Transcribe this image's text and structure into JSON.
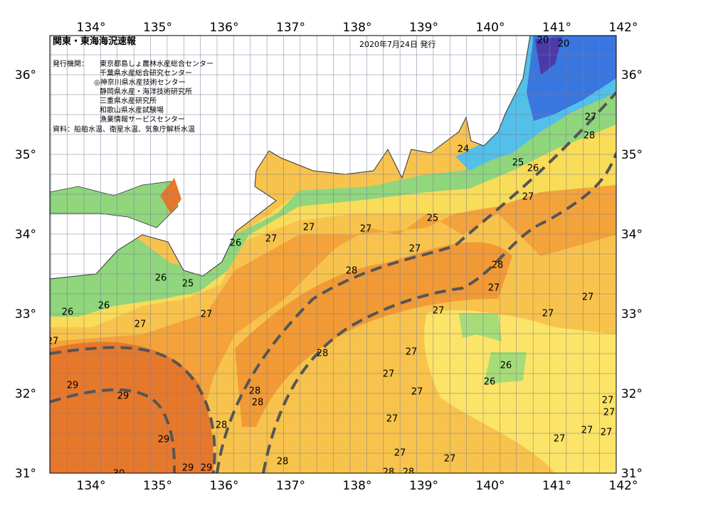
{
  "header": {
    "title": "関東・東海海況速報",
    "date": "2020年7月24日 発行",
    "issuer_label": "発行機関：",
    "issuers": [
      "東京都島しょ農林水産総合センター",
      "千葉県水産総合研究センター",
      "◎神奈川県水産技術センター",
      "静岡県水産・海洋技術研究所",
      "三重県水産研究所",
      "和歌山県水産試験場",
      "漁業情報サービスセンター"
    ],
    "source": "資料：船舶水温、衛星水温、気象庁解析水温"
  },
  "axes": {
    "longitudes": [
      "134°",
      "135°",
      "136°",
      "137°",
      "138°",
      "139°",
      "140°",
      "141°",
      "142°"
    ],
    "latitudes": [
      "36°",
      "35°",
      "34°",
      "33°",
      "32°",
      "31°"
    ]
  },
  "contour_labels": [
    "20",
    "20",
    "27",
    "28",
    "24",
    "25",
    "26",
    "27",
    "25",
    "27",
    "27",
    "26",
    "27",
    "27",
    "28",
    "28",
    "26",
    "25",
    "27",
    "27",
    "26",
    "26",
    "27",
    "27",
    "27",
    "27",
    "27",
    "28",
    "27",
    "26",
    "27",
    "26",
    "29",
    "29",
    "28",
    "28",
    "27",
    "27",
    "27",
    "28",
    "27",
    "27",
    "27",
    "29",
    "27",
    "27",
    "27",
    "28",
    "29",
    "29",
    "30",
    "28",
    "28"
  ]
}
